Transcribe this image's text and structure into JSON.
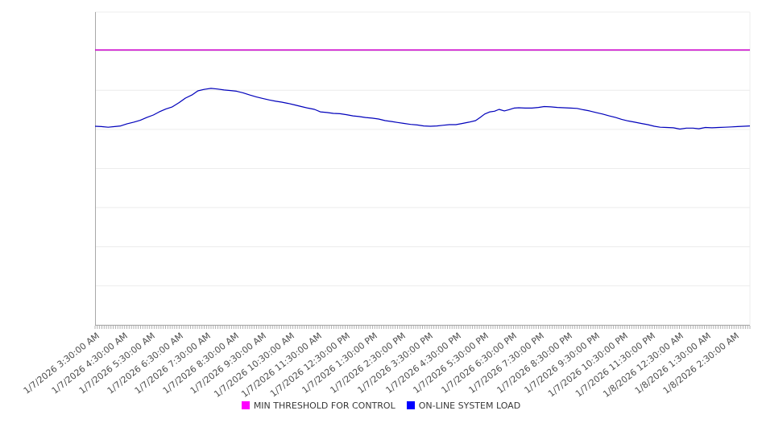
{
  "chart_data": {
    "type": "line",
    "title": "",
    "xlabel": "",
    "ylabel": "",
    "grid": true,
    "legend_position": "bottom-center",
    "y_axis": {
      "tick_labels_visible": false,
      "ylim": [
        0,
        100
      ],
      "gridline_values": [
        0,
        12.5,
        25,
        37.5,
        50,
        62.5,
        75,
        87.5,
        100
      ]
    },
    "x_tick_labels": [
      "1/7/2026 3:30:00 AM",
      "1/7/2026 4:30:00 AM",
      "1/7/2026 5:30:00 AM",
      "1/7/2026 6:30:00 AM",
      "1/7/2026 7:30:00 AM",
      "1/7/2026 8:30:00 AM",
      "1/7/2026 9:30:00 AM",
      "1/7/2026 10:30:00 AM",
      "1/7/2026 11:30:00 AM",
      "1/7/2026 12:30:00 PM",
      "1/7/2026 1:30:00 PM",
      "1/7/2026 2:30:00 PM",
      "1/7/2026 3:30:00 PM",
      "1/7/2026 4:30:00 PM",
      "1/7/2026 5:30:00 PM",
      "1/7/2026 6:30:00 PM",
      "1/7/2026 7:30:00 PM",
      "1/7/2026 8:30:00 PM",
      "1/7/2026 9:30:00 PM",
      "1/7/2026 10:30:00 PM",
      "1/7/2026 11:30:00 PM",
      "1/8/2026 12:30:00 AM",
      "1/8/2026 1:30:00 AM",
      "1/8/2026 2:30:00 AM"
    ],
    "series": [
      {
        "name": "MIN THRESHOLD FOR CONTROL",
        "type": "constant-line",
        "swatch_color": "#ff00ff",
        "line_color": "#cc00cc",
        "value": 87.9
      },
      {
        "name": "ON-LINE SYSTEM LOAD",
        "type": "line",
        "swatch_color": "#0000ff",
        "line_color": "#0000bb",
        "points": [
          [
            0.0,
            63.5
          ],
          [
            0.01,
            63.4
          ],
          [
            0.02,
            63.2
          ],
          [
            0.03,
            63.4
          ],
          [
            0.039,
            63.6
          ],
          [
            0.049,
            64.3
          ],
          [
            0.059,
            64.8
          ],
          [
            0.069,
            65.4
          ],
          [
            0.079,
            66.3
          ],
          [
            0.089,
            67.1
          ],
          [
            0.098,
            68.1
          ],
          [
            0.108,
            69.0
          ],
          [
            0.118,
            69.7
          ],
          [
            0.128,
            71.0
          ],
          [
            0.138,
            72.5
          ],
          [
            0.148,
            73.5
          ],
          [
            0.157,
            74.8
          ],
          [
            0.167,
            75.3
          ],
          [
            0.177,
            75.6
          ],
          [
            0.187,
            75.4
          ],
          [
            0.197,
            75.1
          ],
          [
            0.207,
            74.9
          ],
          [
            0.216,
            74.7
          ],
          [
            0.226,
            74.2
          ],
          [
            0.236,
            73.5
          ],
          [
            0.246,
            72.9
          ],
          [
            0.256,
            72.4
          ],
          [
            0.266,
            71.9
          ],
          [
            0.276,
            71.5
          ],
          [
            0.285,
            71.2
          ],
          [
            0.295,
            70.8
          ],
          [
            0.305,
            70.3
          ],
          [
            0.315,
            69.8
          ],
          [
            0.325,
            69.3
          ],
          [
            0.335,
            68.9
          ],
          [
            0.344,
            68.1
          ],
          [
            0.354,
            67.9
          ],
          [
            0.364,
            67.6
          ],
          [
            0.374,
            67.5
          ],
          [
            0.384,
            67.2
          ],
          [
            0.394,
            66.8
          ],
          [
            0.403,
            66.6
          ],
          [
            0.413,
            66.3
          ],
          [
            0.423,
            66.1
          ],
          [
            0.433,
            65.8
          ],
          [
            0.443,
            65.3
          ],
          [
            0.453,
            65.0
          ],
          [
            0.462,
            64.7
          ],
          [
            0.472,
            64.4
          ],
          [
            0.482,
            64.1
          ],
          [
            0.492,
            63.9
          ],
          [
            0.502,
            63.6
          ],
          [
            0.512,
            63.5
          ],
          [
            0.522,
            63.6
          ],
          [
            0.531,
            63.8
          ],
          [
            0.541,
            64.0
          ],
          [
            0.551,
            64.0
          ],
          [
            0.561,
            64.4
          ],
          [
            0.571,
            64.8
          ],
          [
            0.581,
            65.3
          ],
          [
            0.588,
            66.3
          ],
          [
            0.595,
            67.4
          ],
          [
            0.603,
            68.1
          ],
          [
            0.61,
            68.3
          ],
          [
            0.617,
            68.9
          ],
          [
            0.625,
            68.4
          ],
          [
            0.632,
            68.8
          ],
          [
            0.64,
            69.3
          ],
          [
            0.647,
            69.4
          ],
          [
            0.657,
            69.3
          ],
          [
            0.667,
            69.3
          ],
          [
            0.677,
            69.5
          ],
          [
            0.686,
            69.8
          ],
          [
            0.696,
            69.7
          ],
          [
            0.706,
            69.5
          ],
          [
            0.716,
            69.4
          ],
          [
            0.726,
            69.3
          ],
          [
            0.736,
            69.2
          ],
          [
            0.745,
            68.8
          ],
          [
            0.755,
            68.4
          ],
          [
            0.765,
            67.9
          ],
          [
            0.775,
            67.4
          ],
          [
            0.785,
            66.8
          ],
          [
            0.795,
            66.3
          ],
          [
            0.804,
            65.7
          ],
          [
            0.814,
            65.2
          ],
          [
            0.824,
            64.8
          ],
          [
            0.834,
            64.4
          ],
          [
            0.844,
            64.0
          ],
          [
            0.854,
            63.5
          ],
          [
            0.863,
            63.2
          ],
          [
            0.873,
            63.1
          ],
          [
            0.883,
            63.0
          ],
          [
            0.893,
            62.6
          ],
          [
            0.903,
            62.9
          ],
          [
            0.913,
            62.9
          ],
          [
            0.922,
            62.7
          ],
          [
            0.932,
            63.1
          ],
          [
            0.942,
            63.0
          ],
          [
            0.952,
            63.1
          ],
          [
            0.962,
            63.2
          ],
          [
            0.972,
            63.3
          ],
          [
            0.981,
            63.4
          ],
          [
            0.991,
            63.5
          ],
          [
            1.0,
            63.6
          ]
        ]
      }
    ]
  },
  "legend": {
    "items": [
      {
        "label": "MIN THRESHOLD FOR CONTROL",
        "color": "#ff00ff"
      },
      {
        "label": "ON-LINE SYSTEM LOAD",
        "color": "#0000ff"
      }
    ]
  },
  "colors": {
    "background": "#ffffff",
    "gridline": "#ececec",
    "axis_line": "#a8a8a8",
    "minor_tick": "#b0b0b0",
    "x_label_text": "#4d4d4d",
    "legend_text": "#383838"
  }
}
